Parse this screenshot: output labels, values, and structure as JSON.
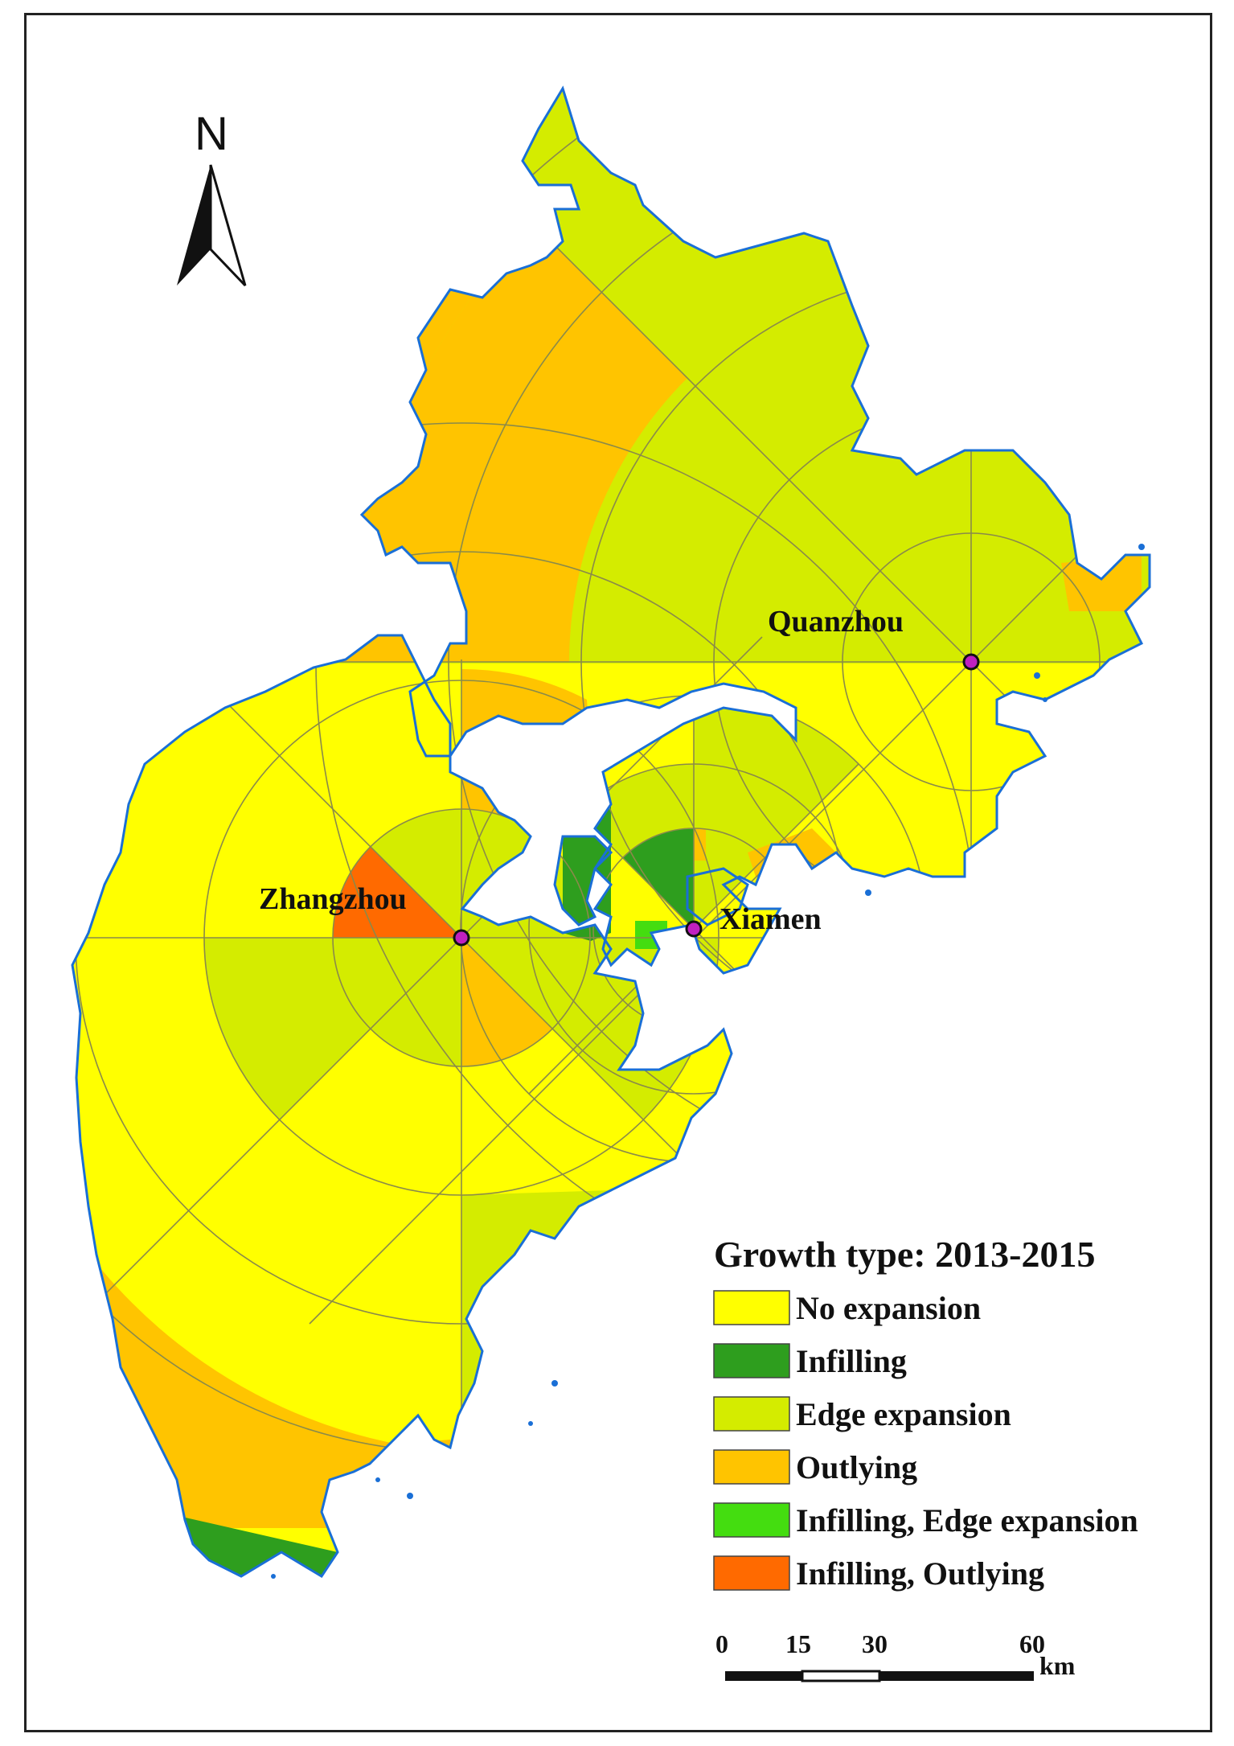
{
  "north_arrow": {
    "letter": "N"
  },
  "cities": [
    {
      "name": "Quanzhou"
    },
    {
      "name": "Zhangzhou"
    },
    {
      "name": "Xiamen"
    }
  ],
  "legend": {
    "title": "Growth type: 2013-2015",
    "items": [
      {
        "label": "No expansion",
        "color": "#ffff00"
      },
      {
        "label": "Infilling",
        "color": "#2e9e1e"
      },
      {
        "label": "Edge expansion",
        "color": "#d4ec00"
      },
      {
        "label": "Outlying",
        "color": "#ffc400"
      },
      {
        "label": "Infilling, Edge expansion",
        "color": "#44dd10"
      },
      {
        "label": "Infilling, Outlying",
        "color": "#ff6a00"
      }
    ]
  },
  "scale_bar": {
    "ticks": [
      "0",
      "15",
      "30",
      "60"
    ],
    "unit": "km"
  },
  "colors": {
    "coastline": "#1a6fd6",
    "ring_lines": "#8a8a4a",
    "city_marker": "#c020c0"
  }
}
